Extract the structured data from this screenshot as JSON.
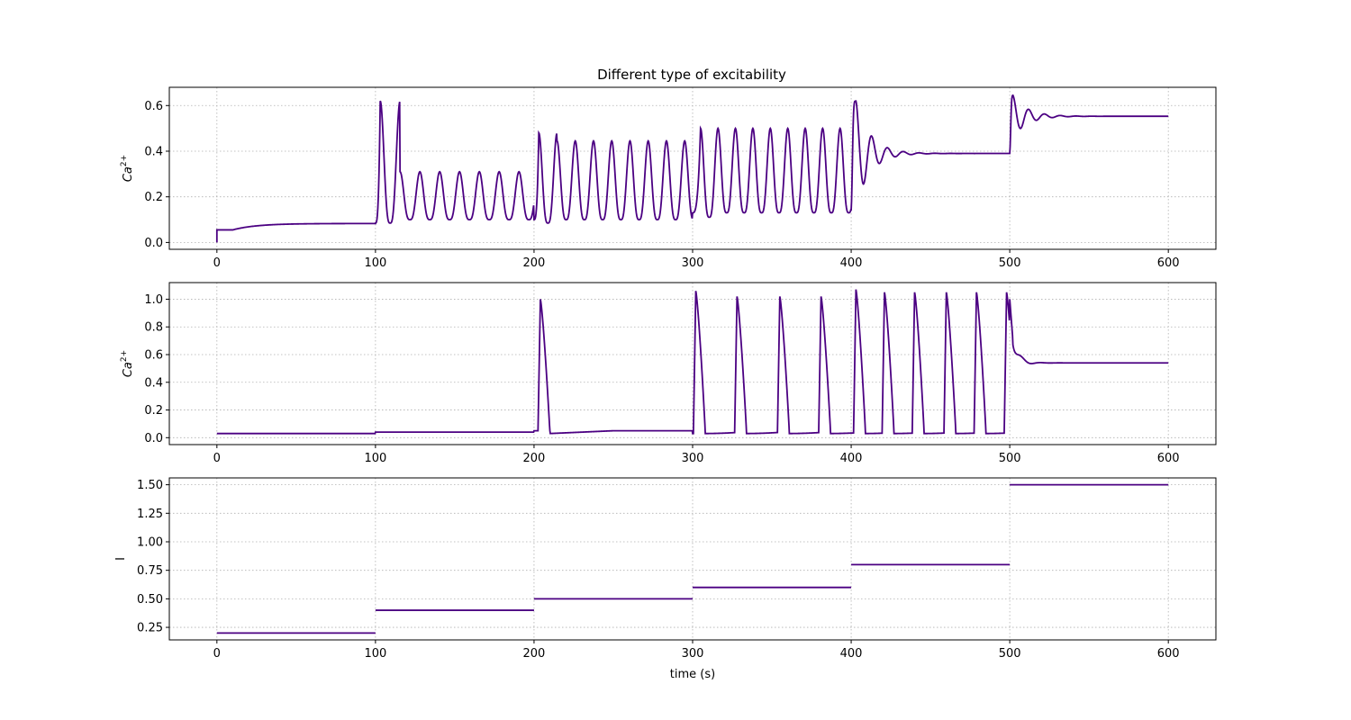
{
  "chart_data": [
    {
      "type": "line",
      "title": "Different type of excitability",
      "xlabel": "",
      "ylabel": "Ca2+",
      "xlim": [
        -30,
        630
      ],
      "ylim": [
        -0.03,
        0.68
      ],
      "xticks": [
        0,
        100,
        200,
        300,
        400,
        500,
        600
      ],
      "xtick_labels": [
        "0",
        "100",
        "200",
        "300",
        "400",
        "500",
        "600"
      ],
      "yticks": [
        0.0,
        0.2,
        0.4,
        0.6
      ],
      "ytick_labels": [
        "0.0",
        "0.2",
        "0.4",
        "0.6"
      ],
      "grid": true,
      "color": "#4b0082",
      "series": [
        {
          "segments": [
            {
              "kind": "ramp",
              "t0": 0,
              "t1": 100,
              "start": 0.0,
              "jump": 0.055,
              "end": 0.083,
              "tau": 15
            },
            {
              "kind": "spikes",
              "t0": 100,
              "t1": 200,
              "base": 0.085,
              "first_peak": 0.62,
              "peak": 0.31,
              "trough": 0.1,
              "period": 12.5,
              "first_at": 103
            },
            {
              "kind": "spikes",
              "t0": 200,
              "t1": 300,
              "base": 0.1,
              "first_peak": 0.48,
              "peak": 0.445,
              "trough": 0.1,
              "period": 11.5,
              "first_at": 203
            },
            {
              "kind": "spikes",
              "t0": 300,
              "t1": 400,
              "base": 0.13,
              "first_peak": 0.5,
              "peak": 0.5,
              "trough": 0.13,
              "period": 11,
              "first_at": 305
            },
            {
              "kind": "damped",
              "t0": 400,
              "t1": 500,
              "peak": 0.62,
              "settle": 0.39,
              "first_at": 403,
              "period": 10
            },
            {
              "kind": "damped",
              "t0": 500,
              "t1": 600,
              "peak": 0.645,
              "settle": 0.553,
              "first_at": 502,
              "period": 10
            }
          ]
        }
      ]
    },
    {
      "type": "line",
      "title": "",
      "xlabel": "",
      "ylabel": "Ca2+",
      "xlim": [
        -30,
        630
      ],
      "ylim": [
        -0.05,
        1.12
      ],
      "xticks": [
        0,
        100,
        200,
        300,
        400,
        500,
        600
      ],
      "xtick_labels": [
        "0",
        "100",
        "200",
        "300",
        "400",
        "500",
        "600"
      ],
      "yticks": [
        0.0,
        0.2,
        0.4,
        0.6,
        0.8,
        1.0
      ],
      "ytick_labels": [
        "0.0",
        "0.2",
        "0.4",
        "0.6",
        "0.8",
        "1.0"
      ],
      "grid": true,
      "color": "#4b0082",
      "series": [
        {
          "spike_times": [
            204,
            302,
            328,
            355,
            381,
            403,
            421,
            440,
            460,
            479,
            498
          ],
          "spike_peaks": [
            1.0,
            1.06,
            1.02,
            1.02,
            1.02,
            1.07,
            1.05,
            1.05,
            1.05,
            1.05,
            1.05
          ],
          "baselines": [
            {
              "t0": 0,
              "t1": 100,
              "value": 0.03
            },
            {
              "t0": 100,
              "t1": 200,
              "value": 0.04
            },
            {
              "t0": 200,
              "t1": 300,
              "value": 0.05
            },
            {
              "t0": 300,
              "t1": 400,
              "value": 0.03
            },
            {
              "t0": 400,
              "t1": 500,
              "value": 0.03
            }
          ],
          "settle": {
            "t0": 500,
            "t1": 600,
            "value": 0.54
          }
        }
      ]
    },
    {
      "type": "line",
      "title": "",
      "xlabel": "time (s)",
      "ylabel": "I",
      "xlim": [
        -30,
        630
      ],
      "ylim": [
        0.14,
        1.56
      ],
      "xticks": [
        0,
        100,
        200,
        300,
        400,
        500,
        600
      ],
      "xtick_labels": [
        "0",
        "100",
        "200",
        "300",
        "400",
        "500",
        "600"
      ],
      "yticks": [
        0.25,
        0.5,
        0.75,
        1.0,
        1.25,
        1.5
      ],
      "ytick_labels": [
        "0.25",
        "0.50",
        "0.75",
        "1.00",
        "1.25",
        "1.50"
      ],
      "grid": true,
      "color": "#4b0082",
      "series": [
        {
          "steps": [
            {
              "t0": 0,
              "t1": 100,
              "value": 0.2
            },
            {
              "t0": 100,
              "t1": 200,
              "value": 0.4
            },
            {
              "t0": 200,
              "t1": 300,
              "value": 0.5
            },
            {
              "t0": 300,
              "t1": 400,
              "value": 0.6
            },
            {
              "t0": 400,
              "t1": 500,
              "value": 0.8
            },
            {
              "t0": 500,
              "t1": 600,
              "value": 1.5
            }
          ]
        }
      ]
    }
  ]
}
